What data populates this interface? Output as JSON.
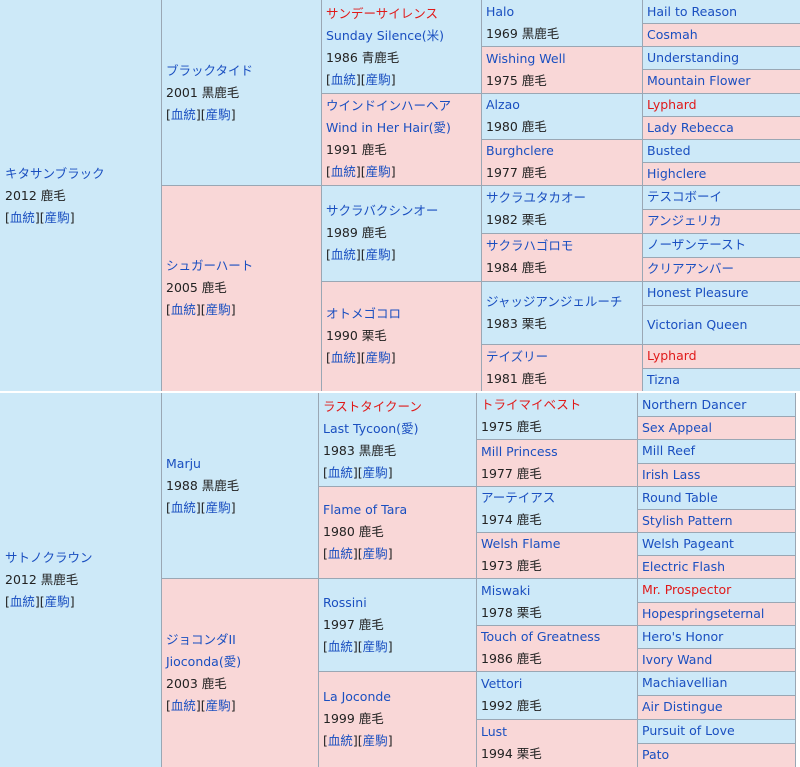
{
  "upper": {
    "horse": {
      "name": "キタサンブラック",
      "info": "2012 鹿毛"
    },
    "sire": {
      "name": "ブラックタイド",
      "info": "2001 黒鹿毛"
    },
    "dam": {
      "name": "シュガーハート",
      "info": "2005 鹿毛"
    },
    "ss": {
      "name": "サンデーサイレンス",
      "name2": "Sunday Silence(米)",
      "info": "1986 青鹿毛"
    },
    "wihh": {
      "name": "ウインドインハーヘア",
      "name2": "Wind in Her Hair(愛)",
      "info": "1991 鹿毛"
    },
    "sakura_bakushin": {
      "name": "サクラバクシンオー",
      "info": "1989 鹿毛"
    },
    "otome": {
      "name": "オトメゴコロ",
      "info": "1990 栗毛"
    },
    "g3": [
      {
        "name": "Halo",
        "info": "1969 黒鹿毛"
      },
      {
        "name": "Wishing Well",
        "info": "1975 鹿毛"
      },
      {
        "name": "Alzao",
        "info": "1980 鹿毛"
      },
      {
        "name": "Burghclere",
        "info": "1977 鹿毛"
      },
      {
        "name": "サクラユタカオー",
        "info": "1982 栗毛"
      },
      {
        "name": "サクラハゴロモ",
        "info": "1984 鹿毛"
      },
      {
        "name": "ジャッジアンジェルーチ",
        "info": "1983 栗毛"
      },
      {
        "name": "テイズリー",
        "info": "1981 鹿毛"
      }
    ],
    "g4": [
      "Hail to Reason",
      "Cosmah",
      "Understanding",
      "Mountain Flower",
      "Lyphard",
      "Lady Rebecca",
      "Busted",
      "Highclere",
      "テスコボーイ",
      "アンジェリカ",
      "ノーザンテースト",
      "クリアアンバー",
      "Honest Pleasure",
      "Victorian Queen",
      "Lyphard",
      "Tizna"
    ]
  },
  "lower": {
    "horse": {
      "name": "サトノクラウン",
      "info": "2012 黒鹿毛"
    },
    "sire": {
      "name": "Marju",
      "info": "1988 黒鹿毛"
    },
    "dam": {
      "name": "ジョコンダII",
      "name2": "Jioconda(愛)",
      "info": "2003 鹿毛"
    },
    "last_tycoon": {
      "name": "ラストタイクーン",
      "name2": "Last Tycoon(愛)",
      "info": "1983 黒鹿毛"
    },
    "flame": {
      "name": "Flame of Tara",
      "info": "1980 鹿毛"
    },
    "rossini": {
      "name": "Rossini",
      "info": "1997 鹿毛"
    },
    "la_joconde": {
      "name": "La Joconde",
      "info": "1999 鹿毛"
    },
    "g3": [
      {
        "name": "トライマイベスト",
        "info": "1975 鹿毛"
      },
      {
        "name": "Mill Princess",
        "info": "1977 鹿毛"
      },
      {
        "name": "アーテイアス",
        "info": "1974 鹿毛"
      },
      {
        "name": "Welsh Flame",
        "info": "1973 鹿毛"
      },
      {
        "name": "Miswaki",
        "info": "1978 栗毛"
      },
      {
        "name": "Touch of Greatness",
        "info": "1986 鹿毛"
      },
      {
        "name": "Vettori",
        "info": "1992 鹿毛"
      },
      {
        "name": "Lust",
        "info": "1994 栗毛"
      }
    ],
    "g4": [
      "Northern Dancer",
      "Sex Appeal",
      "Mill Reef",
      "Irish Lass",
      "Round Table",
      "Stylish Pattern",
      "Welsh Pageant",
      "Electric Flash",
      "Mr. Prospector",
      "Hopespringseternal",
      "Hero's Honor",
      "Ivory Wand",
      "Machiavellian",
      "Air Distingue",
      "Pursuit of Love",
      "Pato"
    ]
  },
  "links": {
    "bloodline": "血統",
    "offspring": "産駒"
  },
  "colors": {
    "sire_bg": "#cde9f8",
    "dam_bg": "#f9d7d7",
    "link": "#1a4fc0",
    "highlight": "#e01a1a"
  }
}
